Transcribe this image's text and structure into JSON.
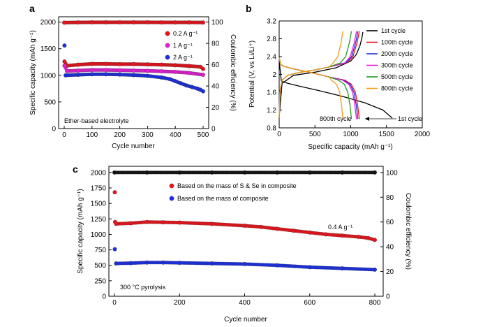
{
  "chart_data": [
    {
      "panel": "a",
      "type": "scatter",
      "xlabel": "Cycle number",
      "ylabel": "Specific capacity (mAh g⁻¹)",
      "y2label": "Coulombic efficiency (%)",
      "xlim": [
        0,
        500
      ],
      "ylim": [
        0,
        2100
      ],
      "y2lim": [
        0,
        105
      ],
      "xticks": [
        0,
        100,
        200,
        300,
        400,
        500
      ],
      "yticks": [
        0,
        500,
        1000,
        1500,
        2000
      ],
      "y2ticks": [
        0,
        20,
        40,
        60,
        80,
        100
      ],
      "annotation": "Ether-based electrolyte",
      "legend_position": "top-right",
      "series": [
        {
          "name": "0.2 A g⁻¹",
          "color": "#e8141c",
          "axis": "capacity",
          "x": [
            1,
            10,
            50,
            100,
            150,
            200,
            250,
            300,
            350,
            400,
            450,
            490,
            500
          ],
          "y": [
            1260,
            1180,
            1200,
            1215,
            1215,
            1210,
            1210,
            1205,
            1200,
            1190,
            1175,
            1160,
            1120
          ]
        },
        {
          "name": "1 A g⁻¹",
          "color": "#e61fd6",
          "axis": "capacity",
          "x": [
            1,
            10,
            50,
            100,
            150,
            200,
            250,
            300,
            350,
            400,
            450,
            500
          ],
          "y": [
            1180,
            1080,
            1090,
            1100,
            1100,
            1095,
            1090,
            1085,
            1075,
            1065,
            1045,
            1010
          ]
        },
        {
          "name": "2 A g⁻¹",
          "color": "#1c2fe0",
          "axis": "capacity",
          "x": [
            1,
            5,
            50,
            100,
            150,
            200,
            250,
            300,
            350,
            380,
            400,
            420,
            440,
            460,
            480,
            490,
            500
          ],
          "y": [
            1560,
            1000,
            1010,
            1020,
            1020,
            1015,
            1005,
            990,
            960,
            930,
            890,
            850,
            810,
            780,
            750,
            730,
            700
          ]
        },
        {
          "name": "CE 0.2 A g⁻¹",
          "color": "#e8141c",
          "axis": "ce",
          "x": [
            0,
            50,
            100,
            150,
            200,
            250,
            300,
            350,
            400,
            450,
            500
          ],
          "y": [
            99.5,
            99.7,
            99.8,
            99.8,
            99.8,
            99.8,
            99.8,
            99.7,
            99.7,
            99.7,
            99.6
          ]
        }
      ]
    },
    {
      "panel": "b",
      "type": "line",
      "xlabel": "Specific capacity (mAh g⁻¹)",
      "ylabel": "Potential (V, vs Li/Li⁺)",
      "xlim": [
        0,
        2000
      ],
      "ylim": [
        0.8,
        3.2
      ],
      "xticks": [
        0,
        500,
        1000,
        1500,
        2000
      ],
      "yticks": [
        0.8,
        1.2,
        1.6,
        2.0,
        2.4,
        2.8,
        3.2
      ],
      "annotations": [
        "800th cycle",
        "1st cycle"
      ],
      "legend_position": "top-right",
      "series": [
        {
          "name": "1st cycle",
          "color": "#000000",
          "discharge_end": 1580,
          "charge_end": 1170
        },
        {
          "name": "100th cycle",
          "color": "#e8141c",
          "discharge_end": 1120,
          "charge_end": 1120
        },
        {
          "name": "200th cycle",
          "color": "#1c2fe0",
          "discharge_end": 1100,
          "charge_end": 1100
        },
        {
          "name": "300th cycle",
          "color": "#e61fd6",
          "discharge_end": 1080,
          "charge_end": 1080
        },
        {
          "name": "500th cycle",
          "color": "#1f9a1f",
          "discharge_end": 1010,
          "charge_end": 1010
        },
        {
          "name": "800th cycle",
          "color": "#f39c12",
          "discharge_end": 890,
          "charge_end": 890
        }
      ]
    },
    {
      "panel": "c",
      "type": "scatter",
      "xlabel": "Cycle number",
      "ylabel": "Specific capacity (mAh g⁻¹)",
      "y2label": "Coulombic efficiency (%)",
      "xlim": [
        0,
        800
      ],
      "ylim": [
        0,
        2100
      ],
      "y2lim": [
        0,
        105
      ],
      "xticks": [
        0,
        200,
        400,
        600,
        800
      ],
      "yticks": [
        0,
        250,
        500,
        750,
        1000,
        1250,
        1500,
        1750,
        2000
      ],
      "y2ticks": [
        0,
        20,
        40,
        60,
        80,
        100
      ],
      "annotations": [
        "0.4 A g⁻¹",
        "300 °C pyrolysis"
      ],
      "legend_position": "top-left",
      "series": [
        {
          "name": "Based on the mass of S & Se in composite",
          "color": "#e8141c",
          "axis": "capacity",
          "x": [
            1,
            2,
            5,
            50,
            100,
            150,
            200,
            300,
            400,
            450,
            500,
            550,
            600,
            650,
            700,
            750,
            780,
            800
          ],
          "y": [
            1680,
            1200,
            1170,
            1180,
            1200,
            1195,
            1190,
            1170,
            1140,
            1120,
            1090,
            1060,
            1030,
            1000,
            980,
            960,
            940,
            910
          ]
        },
        {
          "name": "Based on the mass of composite",
          "color": "#1c2fe0",
          "axis": "capacity",
          "x": [
            1,
            5,
            50,
            100,
            150,
            200,
            300,
            400,
            500,
            600,
            700,
            800
          ],
          "y": [
            760,
            530,
            535,
            545,
            545,
            540,
            530,
            520,
            500,
            470,
            450,
            430
          ]
        },
        {
          "name": "Coulombic efficiency",
          "color": "#111111",
          "axis": "ce",
          "x": [
            0,
            100,
            200,
            300,
            400,
            500,
            600,
            700,
            800
          ],
          "y": [
            100,
            100,
            100,
            100,
            100,
            100,
            100,
            100,
            100
          ]
        }
      ]
    }
  ],
  "panels": {
    "a": {
      "letter": "a"
    },
    "b": {
      "letter": "b"
    },
    "c": {
      "letter": "c"
    }
  }
}
